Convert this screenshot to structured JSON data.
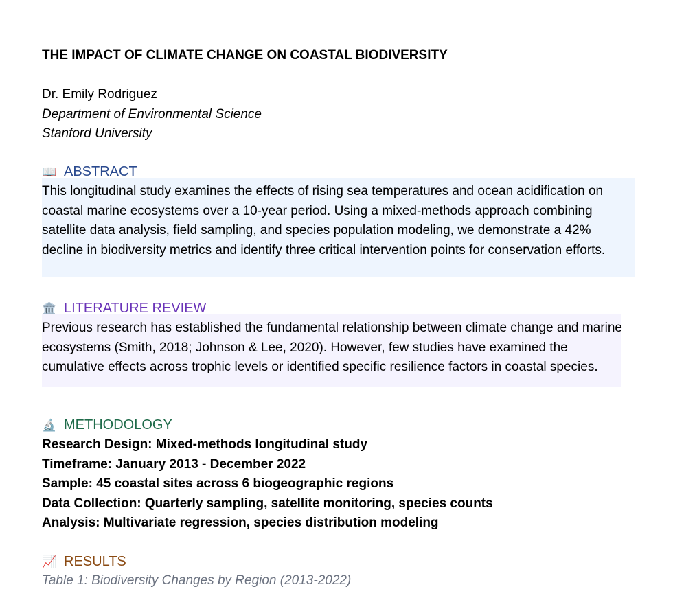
{
  "paper": {
    "title": "THE IMPACT OF CLIMATE CHANGE ON COASTAL BIODIVERSITY",
    "author": "Dr. Emily Rodriguez",
    "department": "Department of Environmental Science",
    "university": "Stanford University"
  },
  "sections": {
    "abstract": {
      "icon": "📖",
      "icon_name": "book-icon",
      "heading": "ABSTRACT",
      "color": "#2a4a8f",
      "body": "This longitudinal study examines the effects of rising sea temperatures and ocean acidification on coastal marine ecosystems over a 10-year period. Using a mixed-methods approach combining satellite data analysis, field sampling, and species population modeling, we demonstrate a 42% decline in biodiversity metrics and identify three critical intervention points for conservation efforts."
    },
    "literature_review": {
      "icon": "🏛️",
      "icon_name": "classical-building-icon",
      "heading": "LITERATURE REVIEW",
      "color": "#6a34b8",
      "body": "Previous research has established the fundamental relationship between climate change and marine ecosystems (Smith, 2018; Johnson & Lee, 2020). However, few studies have examined the cumulative effects across trophic levels or identified specific resilience factors in coastal species."
    },
    "methodology": {
      "icon": "🔬",
      "icon_name": "microscope-icon",
      "heading": "METHODOLOGY",
      "color": "#1f6b4a",
      "items": [
        "Research Design: Mixed-methods longitudinal study",
        "Timeframe: January 2013 - December 2022",
        "Sample: 45 coastal sites across 6 biogeographic regions",
        "Data Collection: Quarterly sampling, satellite monitoring, species counts",
        "Analysis: Multivariate regression, species distribution modeling"
      ]
    },
    "results": {
      "icon": "📈",
      "icon_name": "chart-increasing-icon",
      "heading": "RESULTS",
      "color": "#8a4a12",
      "table_caption": "Table 1: Biodiversity Changes by Region (2013-2022)"
    }
  }
}
